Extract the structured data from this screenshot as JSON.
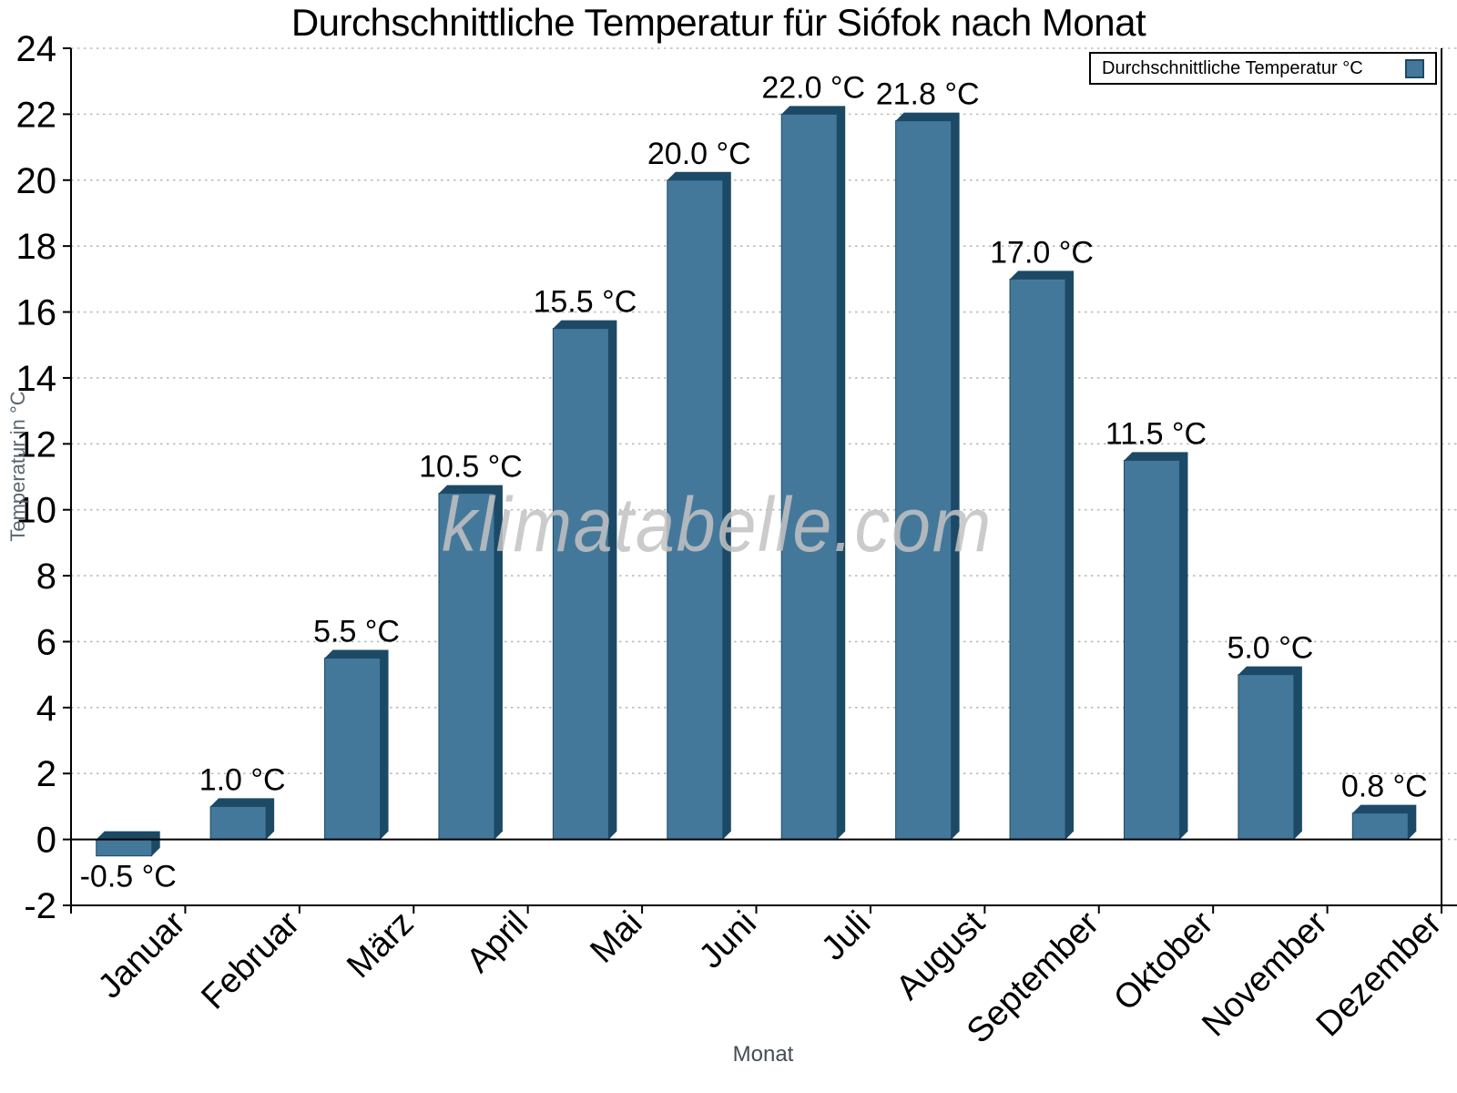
{
  "title": "Durchschnittliche Temperatur für Siófok nach Monat",
  "legend": {
    "label": "Durchschnittliche Temperatur °C"
  },
  "watermark": {
    "text": "klimatabelle.com"
  },
  "axes": {
    "x_title": "Monat",
    "y_title": "Temperatur in °C"
  },
  "chart_data": {
    "type": "bar",
    "title": "Durchschnittliche Temperatur für Siófok nach Monat",
    "xlabel": "Monat",
    "ylabel": "Temperatur in °C",
    "series_name": "Durchschnittliche Temperatur °C",
    "categories": [
      "Januar",
      "Februar",
      "März",
      "April",
      "Mai",
      "Juni",
      "Juli",
      "August",
      "September",
      "Oktober",
      "November",
      "Dezember"
    ],
    "values": [
      -0.5,
      1.0,
      5.5,
      10.5,
      15.5,
      20.0,
      22.0,
      21.8,
      17.0,
      11.5,
      5.0,
      0.8
    ],
    "value_labels": [
      "-0.5 °C",
      "1.0 °C",
      "5.5 °C",
      "10.5 °C",
      "15.5 °C",
      "20.0 °C",
      "22.0 °C",
      "21.8 °C",
      "17.0 °C",
      "11.5 °C",
      "5.0 °C",
      "0.8 °C"
    ],
    "ylim": [
      -2,
      24
    ],
    "ytick_step": 2,
    "grid": "horizontal-dotted",
    "legend_position": "top-right",
    "x_labels_rotation_deg": 45,
    "colors": {
      "bar": "#44789B",
      "bar_edge": "#1C4A66",
      "grid": "#bbbbbb",
      "axis": "#000000",
      "tick_label": "#000000",
      "watermark": "#c3c3c3"
    }
  }
}
